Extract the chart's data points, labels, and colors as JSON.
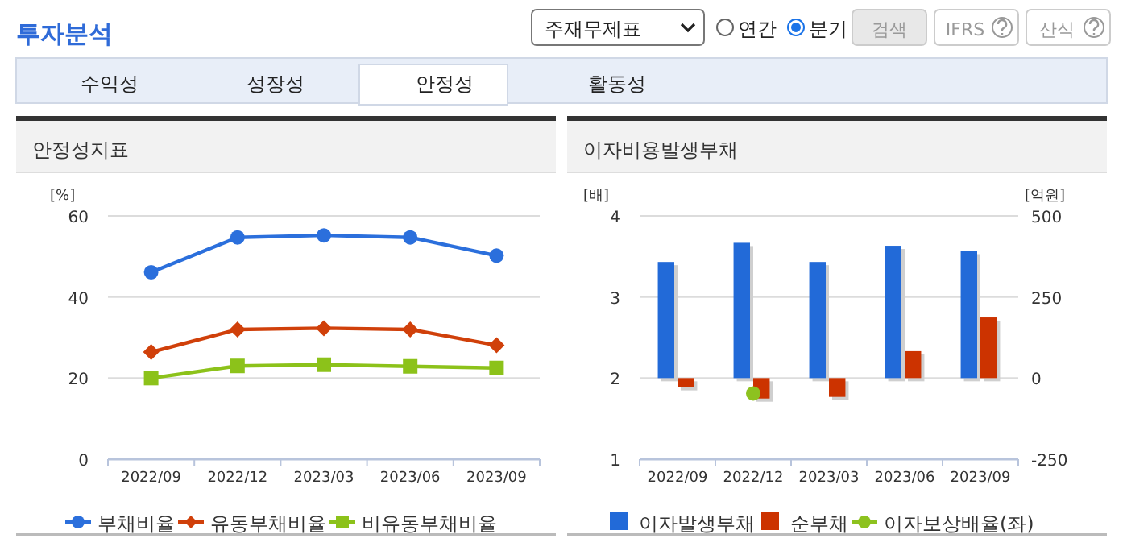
{
  "chart_data": [
    {
      "type": "other",
      "title": "투자분석",
      "annotations": [
        "주재무제표",
        "연간",
        "분기",
        "검색",
        "IFRS",
        "산식",
        "수익성",
        "성장성",
        "안정성",
        "활동성"
      ]
    },
    {
      "type": "line",
      "title": "안정성지표",
      "ylabel": "[%]",
      "categories": [
        "2022/09",
        "2022/12",
        "2023/03",
        "2023/06",
        "2023/09"
      ],
      "ylim": [
        0,
        60
      ],
      "yticks": [
        0,
        20,
        40,
        60
      ],
      "grid": "y",
      "legend": "bottom",
      "series": [
        {
          "name": "부채비율",
          "color": "#2b6fdc",
          "marker": "circle",
          "values": [
            46.1,
            54.7,
            55.2,
            54.7,
            50.2
          ]
        },
        {
          "name": "유동부채비율",
          "color": "#d0400a",
          "marker": "diamond",
          "values": [
            26.4,
            32.0,
            32.3,
            32.0,
            28.1
          ]
        },
        {
          "name": "비유동부채비율",
          "color": "#8cc21a",
          "marker": "square",
          "values": [
            20.0,
            23.0,
            23.3,
            22.9,
            22.5
          ]
        }
      ]
    },
    {
      "type": "bar",
      "title": "이자비용발생부채",
      "ylabel": "[배]",
      "y2label": "[억원]",
      "categories": [
        "2022/09",
        "2022/12",
        "2023/03",
        "2023/06",
        "2023/09"
      ],
      "ylim": [
        1,
        4
      ],
      "yticks": [
        1,
        2,
        3,
        4
      ],
      "y2lim": [
        -250,
        500
      ],
      "y2ticks": [
        -250,
        0,
        250,
        500
      ],
      "grid": "y",
      "legend": "bottom",
      "series": [
        {
          "name": "이자발생부채",
          "color": "#226ad8",
          "axis": "y2",
          "values": [
            358,
            417,
            358,
            408,
            392
          ]
        },
        {
          "name": "순부채",
          "color": "#cc3300",
          "axis": "y2",
          "values": [
            -28,
            -63,
            -58,
            83,
            187
          ]
        },
        {
          "name": "이자보상배율(좌)",
          "color": "#8dc21f",
          "type": "scatter",
          "marker": "circle",
          "axis": "y",
          "values": [
            null,
            1.81,
            null,
            null,
            null
          ]
        }
      ]
    }
  ]
}
